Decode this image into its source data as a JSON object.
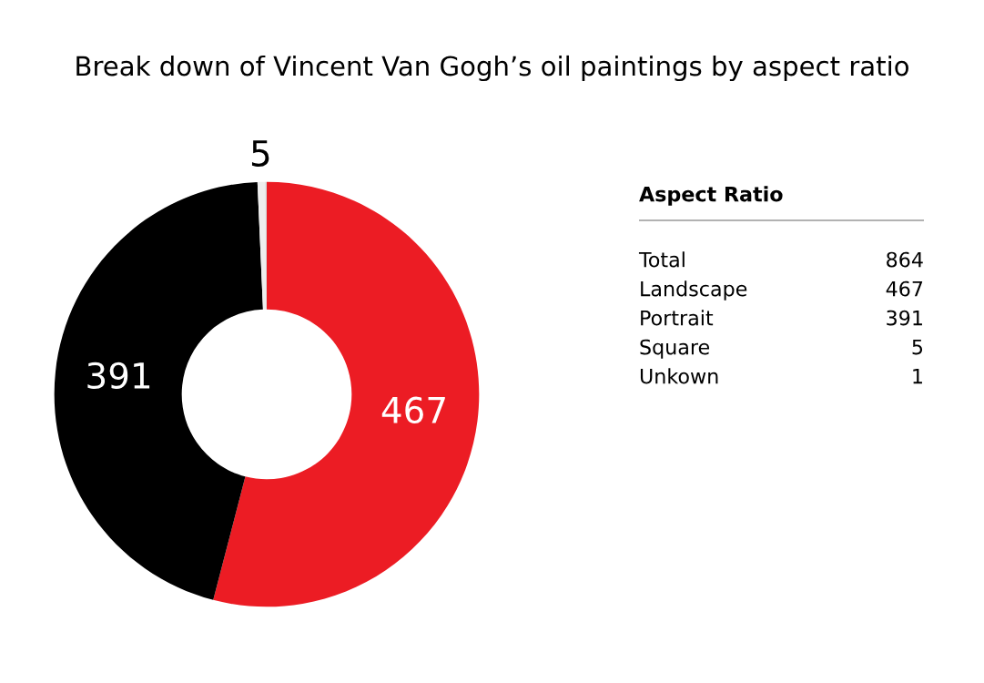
{
  "chart_data": [
    {
      "type": "donut",
      "title": "Break down of Vincent Van Gogh’s oil paintings by aspect ratio",
      "categories": [
        null,
        null,
        null,
        null
      ],
      "values": [
        467,
        391,
        5,
        1
      ],
      "colors": [
        "#ec1c24",
        "#000000",
        "#eeeeee",
        "#d9d9d9"
      ],
      "value_labels": [
        "467",
        "391",
        "5",
        null
      ]
    },
    {
      "type": "other",
      "title": "Aspect Ratio",
      "categories": [
        "Total",
        "Landscape",
        "Portrait",
        "Square",
        "Unkown"
      ],
      "values": [
        864,
        467,
        391,
        5,
        1
      ],
      "data_labels": true
    }
  ]
}
